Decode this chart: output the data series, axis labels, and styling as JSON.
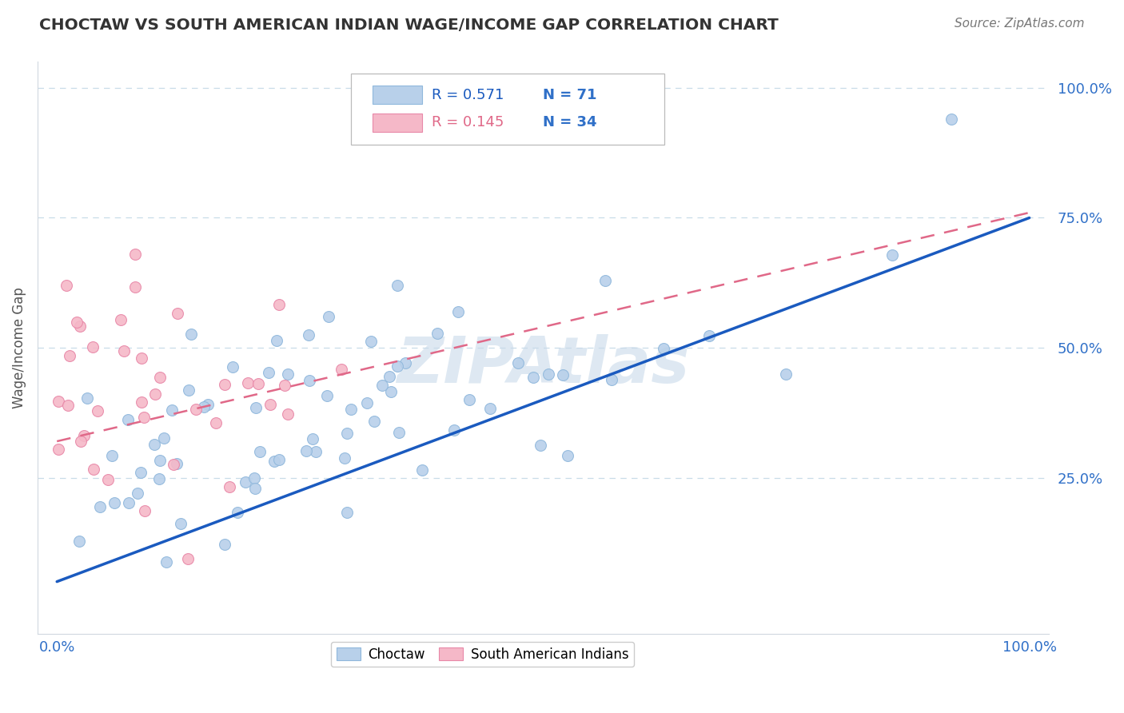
{
  "title": "CHOCTAW VS SOUTH AMERICAN INDIAN WAGE/INCOME GAP CORRELATION CHART",
  "source": "Source: ZipAtlas.com",
  "ylabel": "Wage/Income Gap",
  "xlabel": "",
  "xlim": [
    -0.02,
    1.02
  ],
  "ylim": [
    -0.05,
    1.05
  ],
  "yticks": [
    0.25,
    0.5,
    0.75,
    1.0
  ],
  "ytick_labels": [
    "25.0%",
    "50.0%",
    "75.0%",
    "100.0%"
  ],
  "xticks": [
    0,
    1
  ],
  "xtick_labels": [
    "0.0%",
    "100.0%"
  ],
  "choctaw_color": "#b8d0ea",
  "choctaw_edge_color": "#90b8dc",
  "sam_color": "#f5b8c8",
  "sam_edge_color": "#e888a8",
  "blue_line_color": "#1a5abf",
  "pink_line_color": "#e06888",
  "tick_color": "#3070c8",
  "grid_color": "#c8dce8",
  "watermark_color": "#c8daea",
  "R_choctaw": 0.571,
  "N_choctaw": 71,
  "R_sam": 0.145,
  "N_sam": 34,
  "blue_line": [
    0.0,
    0.05,
    1.0,
    0.75
  ],
  "pink_line": [
    0.0,
    0.32,
    1.0,
    0.76
  ]
}
